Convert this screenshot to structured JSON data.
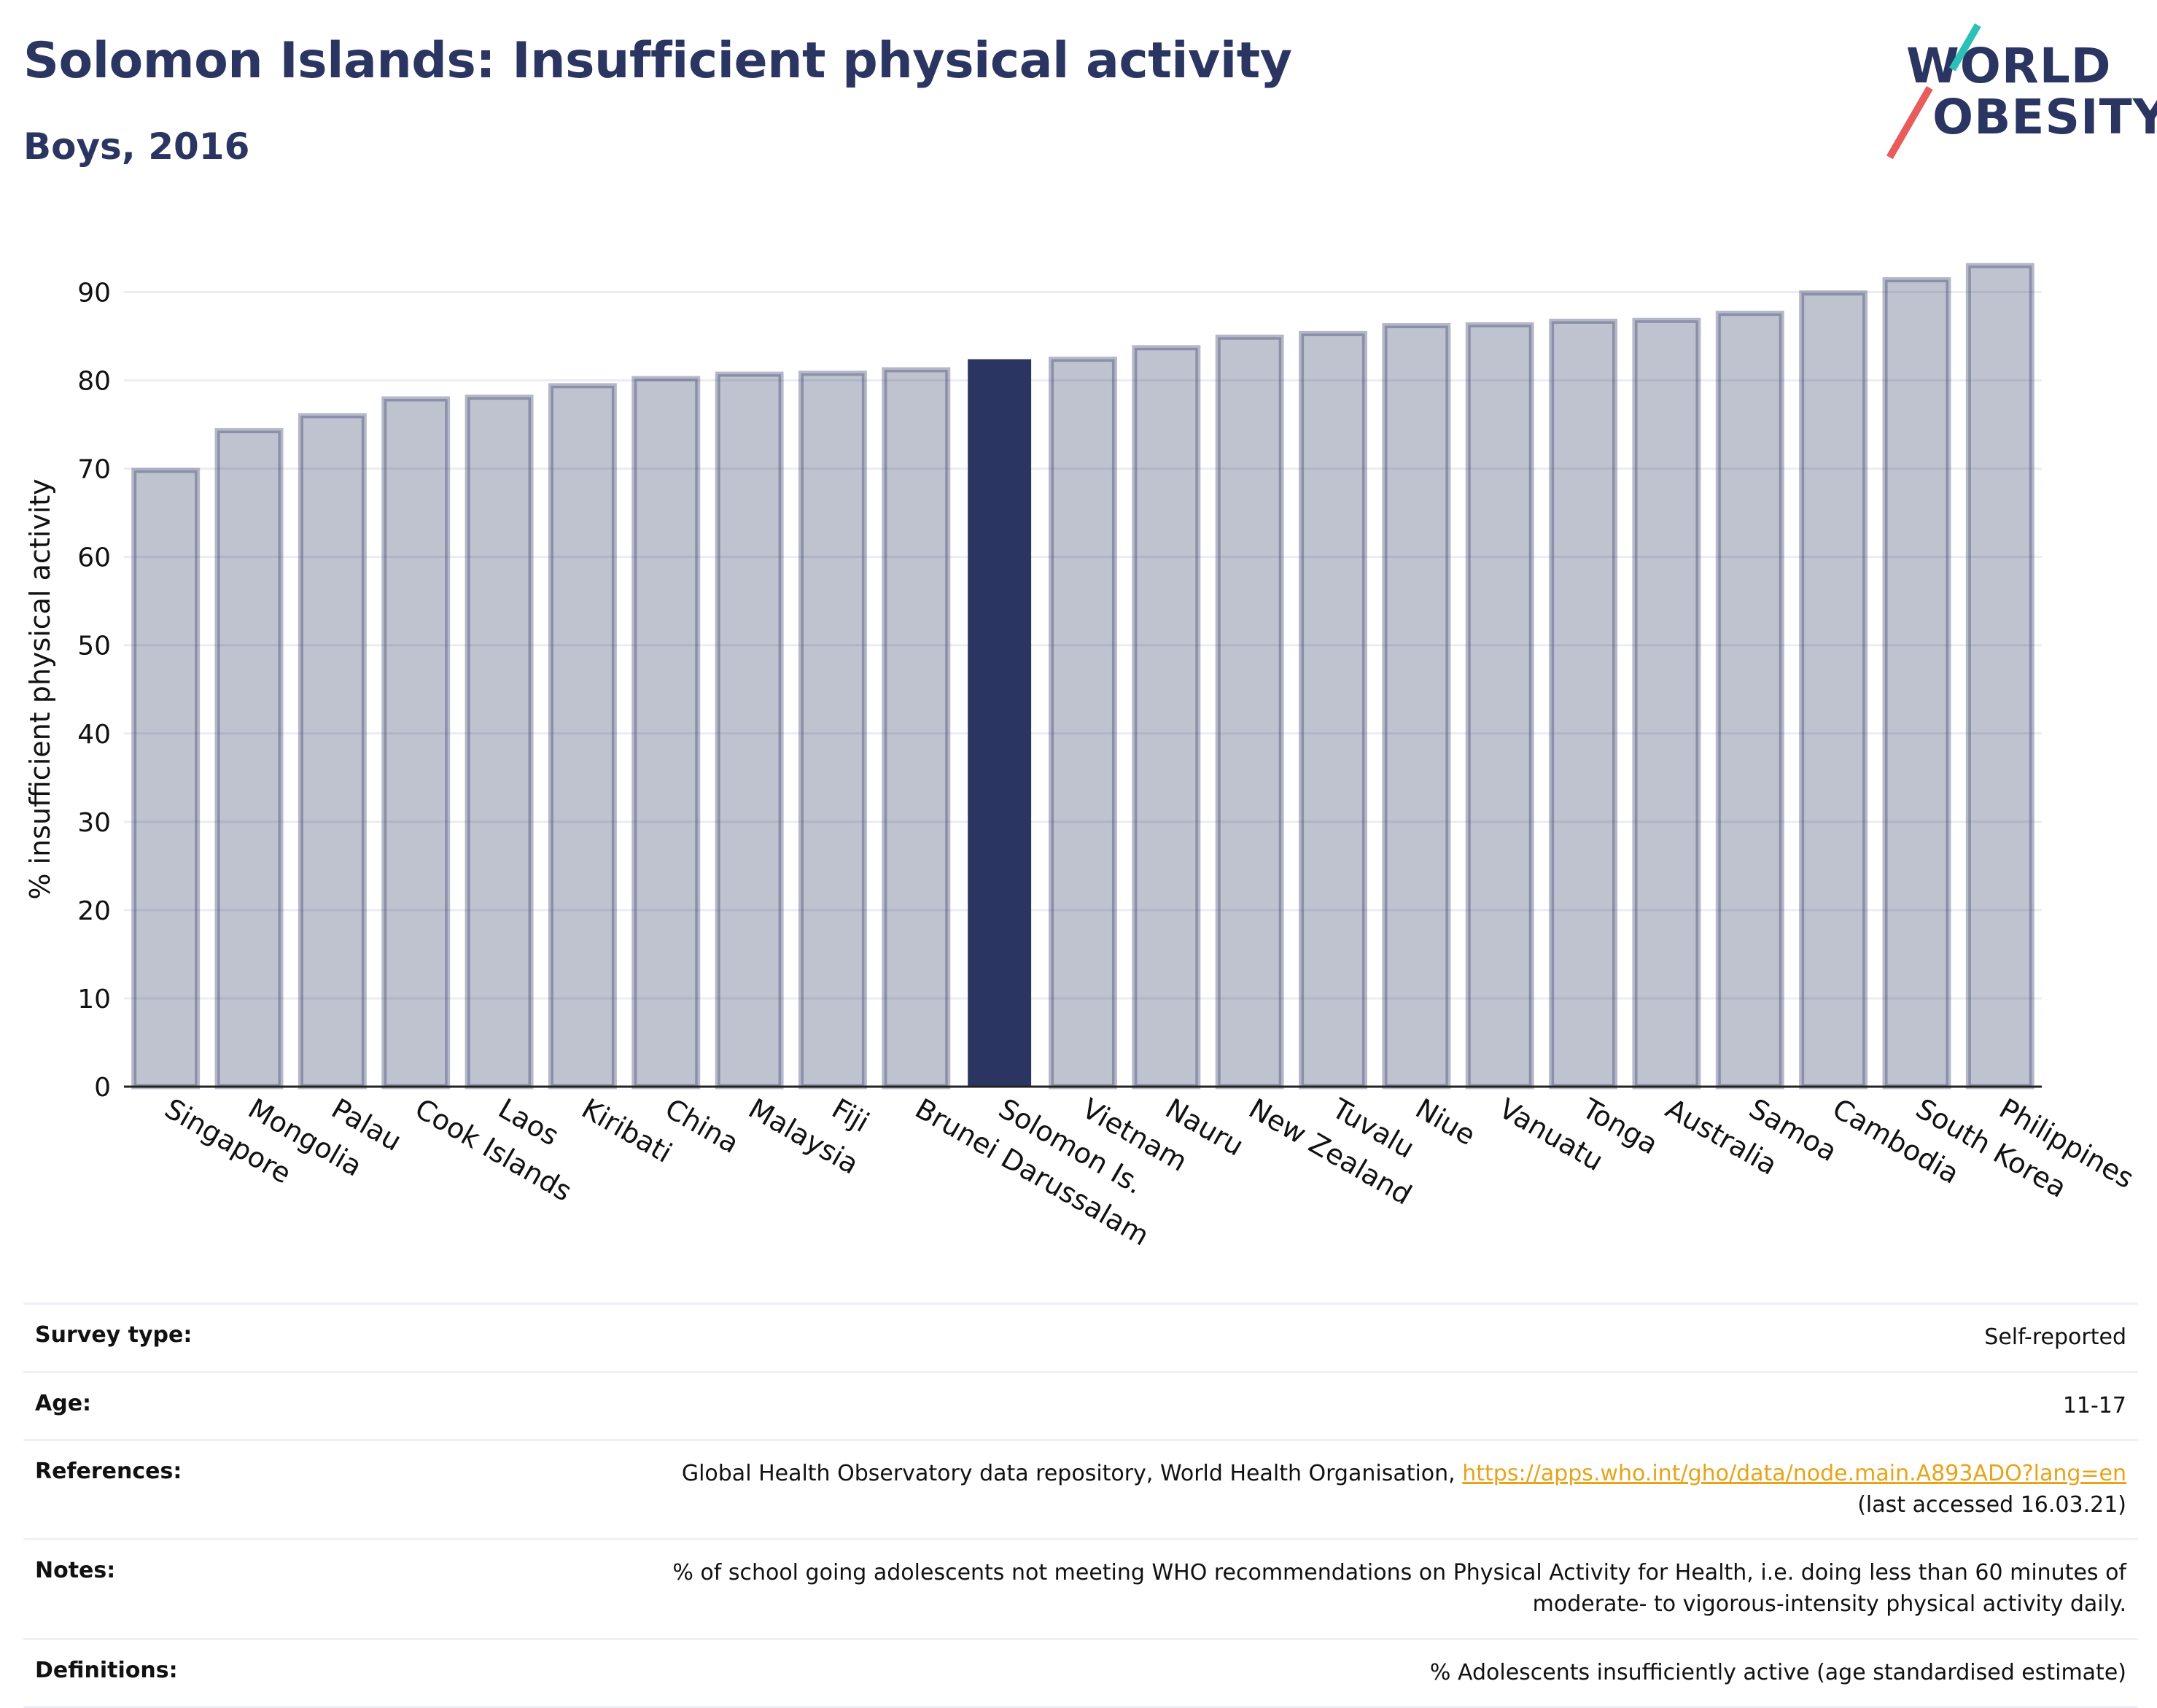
{
  "header": {
    "title": "Solomon Islands: Insufficient physical activity",
    "subtitle": "Boys, 2016"
  },
  "logo": {
    "line1": "WORLD",
    "line2": "OBESITY",
    "text_color": "#2b3561",
    "accent_pink": "#e85c5c",
    "accent_teal": "#2cc0b8"
  },
  "chart_data": {
    "type": "bar",
    "ylabel": "% insufficient physical activity",
    "xlabel": "",
    "ylim": [
      0,
      95
    ],
    "yticks": [
      0,
      10,
      20,
      30,
      40,
      50,
      60,
      70,
      80,
      90
    ],
    "grid": true,
    "highlight": "Solomon Is.",
    "colors": {
      "default_bar": "#2b3561",
      "highlight_bar": "#2b3561"
    },
    "categories": [
      "Singapore",
      "Mongolia",
      "Palau",
      "Cook Islands",
      "Laos",
      "Kiribati",
      "China",
      "Malaysia",
      "Fiji",
      "Brunei Darussalam",
      "Solomon Is.",
      "Vietnam",
      "Nauru",
      "New Zealand",
      "Tuvalu",
      "Niue",
      "Vanuatu",
      "Tonga",
      "Australia",
      "Samoa",
      "Cambodia",
      "South Korea",
      "Philippines"
    ],
    "values": [
      69.8,
      74.3,
      76.0,
      77.9,
      78.1,
      79.4,
      80.2,
      80.7,
      80.8,
      81.2,
      82.4,
      82.4,
      83.7,
      84.9,
      85.3,
      86.2,
      86.3,
      86.7,
      86.8,
      87.6,
      89.9,
      91.4,
      93.0
    ]
  },
  "info": {
    "survey_type": {
      "label": "Survey type:",
      "value": "Self-reported"
    },
    "age": {
      "label": "Age:",
      "value": "11-17"
    },
    "references": {
      "label": "References:",
      "text": "Global Health Observatory data repository, World Health Organisation,",
      "link": "https://apps.who.int/gho/data/node.main.A893ADO?lang=en",
      "accessed": "(last accessed 16.03.21)"
    },
    "notes": {
      "label": "Notes:",
      "line1": "% of school going adolescents not meeting WHO recommendations on Physical Activity for Health, i.e. doing less than 60 minutes of",
      "line2": "moderate- to vigorous-intensity physical activity daily."
    },
    "definitions": {
      "label": "Definitions:",
      "value": "% Adolescents insufficiently active (age standardised estimate)"
    }
  }
}
